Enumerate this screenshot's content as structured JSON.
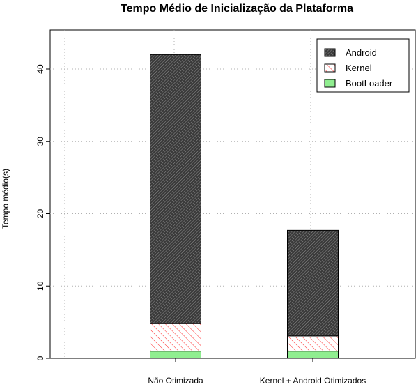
{
  "chart_data": {
    "type": "bar",
    "stacked": true,
    "title": "Tempo Médio de Inicialização da Plataforma",
    "xlabel": "",
    "ylabel": "Tempo médio(s)",
    "categories": [
      "Não Otimizada",
      "Kernel + Android Otimizados"
    ],
    "series": [
      {
        "name": "BootLoader",
        "values": [
          1.0,
          1.0
        ],
        "color": "#90ee90",
        "fill": "solid"
      },
      {
        "name": "Kernel",
        "values": [
          3.8,
          2.1
        ],
        "color": "#ff0000",
        "fill": "hatched"
      },
      {
        "name": "Android",
        "values": [
          37.2,
          14.6
        ],
        "color": "#4d4d4d",
        "fill": "dense-hatched"
      }
    ],
    "ylim": [
      0,
      45
    ],
    "yticks": [
      0,
      10,
      20,
      30,
      40
    ],
    "grid": true,
    "legend": {
      "position": "top-right",
      "order": [
        "Android",
        "Kernel",
        "BootLoader"
      ]
    }
  }
}
